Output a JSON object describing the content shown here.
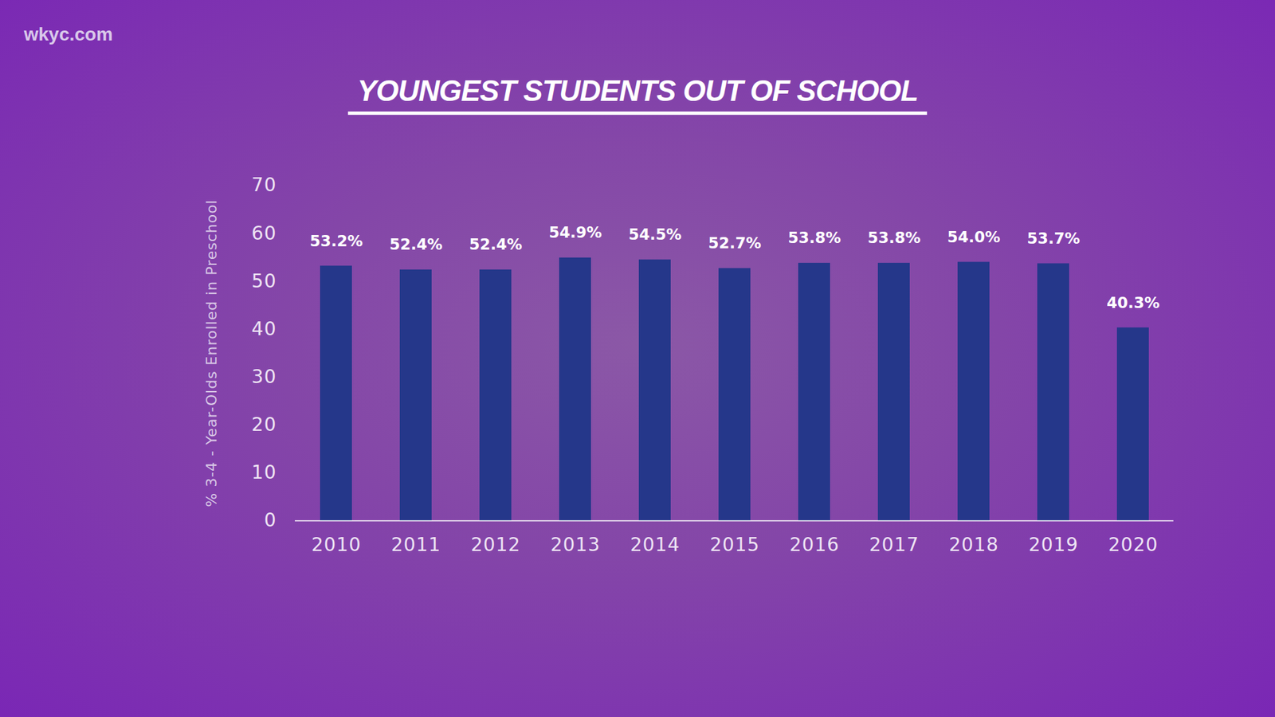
{
  "chart_data": {
    "type": "bar",
    "title": "YOUNGEST STUDENTS OUT OF SCHOOL",
    "source": "wkyc.com",
    "y_label": "% 3-4 - Year-Olds Enrolled in Preschool",
    "categories": [
      "2010",
      "2011",
      "2012",
      "2013",
      "2014",
      "2015",
      "2016",
      "2017",
      "2018",
      "2019",
      "2020"
    ],
    "values": [
      53.2,
      52.4,
      52.4,
      54.9,
      54.5,
      52.7,
      53.8,
      53.8,
      54.0,
      53.7,
      40.3
    ],
    "value_labels": [
      "53.2%",
      "52.4%",
      "52.4%",
      "54.9%",
      "54.5%",
      "52.7%",
      "53.8%",
      "53.8%",
      "54.0%",
      "53.7%",
      "40.3%"
    ],
    "color": "#25378a",
    "ylim": [
      0,
      70
    ],
    "yticks": [
      0,
      10,
      20,
      30,
      40,
      50,
      60,
      70
    ],
    "grid": false,
    "data_labels": true
  }
}
